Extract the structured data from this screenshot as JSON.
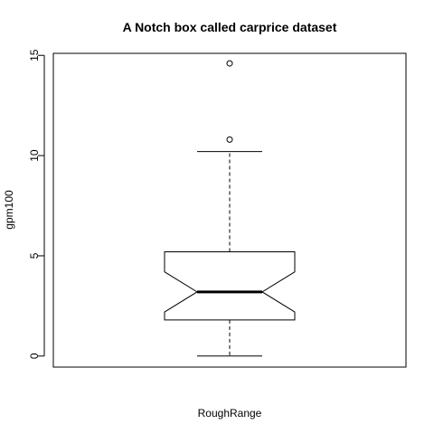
{
  "chart_data": {
    "type": "box",
    "notch": true,
    "title": "A Notch box called carprice dataset",
    "xlabel": "RoughRange",
    "ylabel": "gpm100",
    "ylim": [
      -0.55,
      15.1
    ],
    "yticks": [
      0,
      5,
      10,
      15
    ],
    "box": {
      "whisker_low": 0.0,
      "q1": 1.8,
      "median": 3.2,
      "q3": 5.2,
      "whisker_high": 10.2,
      "notch_low": 2.2,
      "notch_high": 4.2
    },
    "outliers": [
      10.8,
      14.6
    ]
  }
}
